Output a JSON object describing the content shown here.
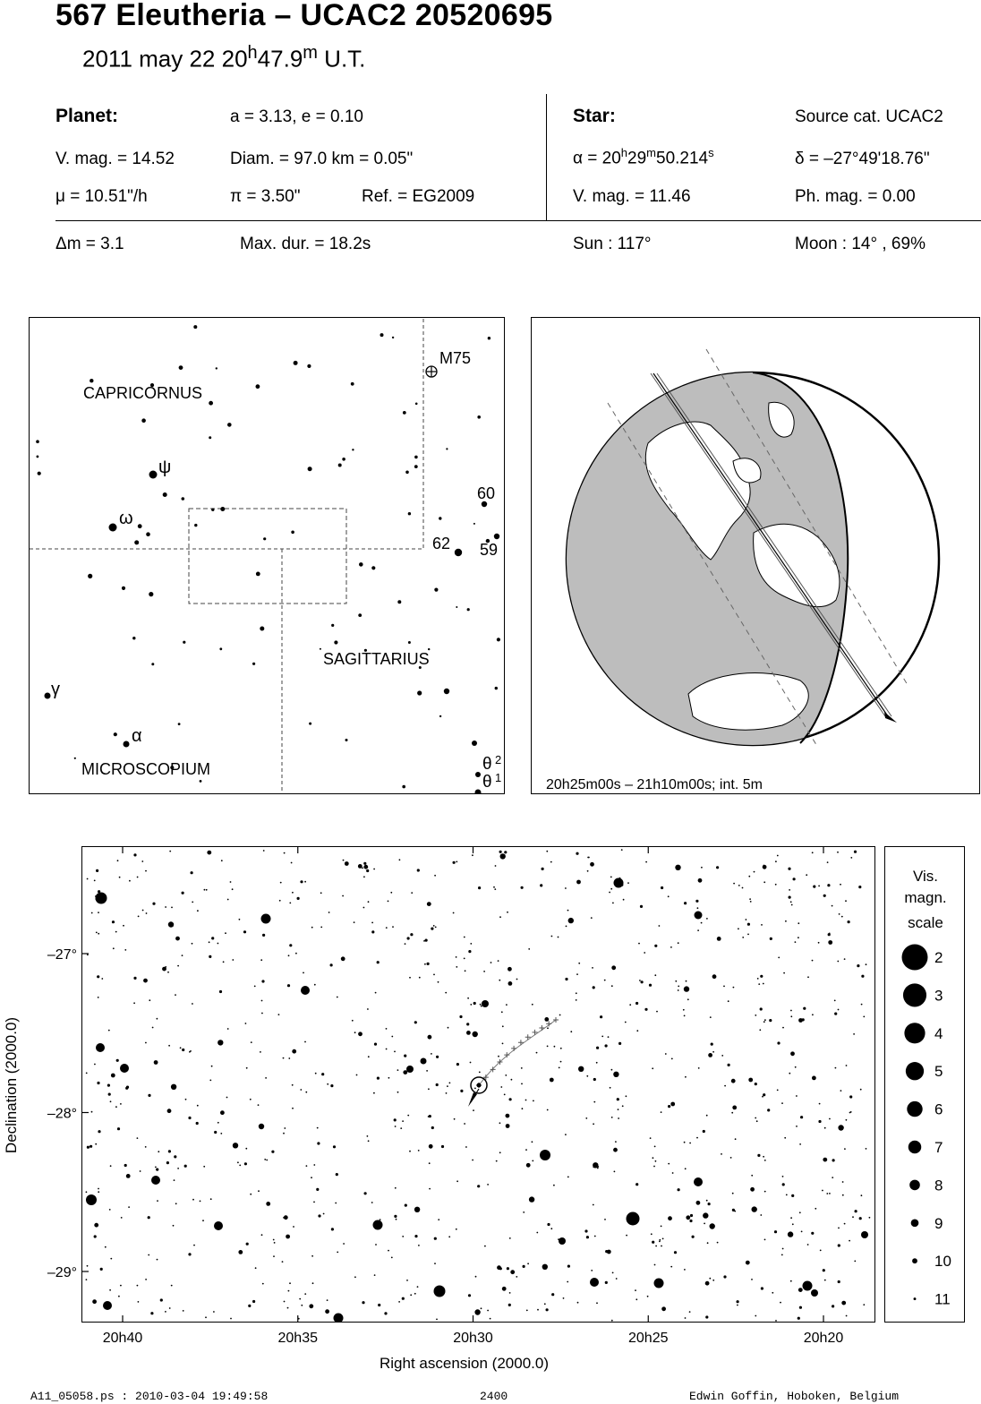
{
  "header": {
    "title": "567 Eleutheria  –  UCAC2 20520695",
    "date_prefix": "2011 may 22  20",
    "date_h": "h",
    "date_mid": "47.9",
    "date_m": "m",
    "date_suffix": " U.T."
  },
  "planet": {
    "heading": "Planet:",
    "orbit": "a = 3.13, e = 0.10",
    "vmag": "V. mag. = 14.52",
    "diam": "Diam. = 97.0 km = 0.05\"",
    "mu": "μ =  10.51\"/h",
    "pi": "π =  3.50\"",
    "ref": "Ref. = EG2009"
  },
  "star": {
    "heading": "Star:",
    "source": "Source cat.  UCAC2",
    "ra_prefix": "α = 20",
    "ra_h": "h",
    "ra_mid1": "29",
    "ra_m": "m",
    "ra_mid2": "50.214",
    "ra_s": "s",
    "dec": "δ = –27°49'18.76\"",
    "vmag": "V. mag. = 11.46",
    "phmag": "Ph. mag. =  0.00"
  },
  "event": {
    "dm": "Δm = 3.1",
    "maxdur": "Max. dur. = 18.2s",
    "sun": "Sun : 117°",
    "moon": "Moon :  14° , 69%"
  },
  "finder": {
    "labels": {
      "capricornus": "CAPRICORNUS",
      "sagittarius": "SAGITTARIUS",
      "microscopium": "MICROSCOPIUM",
      "m75": "M75",
      "psi": "ψ",
      "omega": "ω",
      "gamma": "γ",
      "alpha": "α",
      "n60": "60",
      "n62": "62",
      "n59": "59",
      "theta": "θ",
      "sup2": "2",
      "sup1": "1"
    }
  },
  "globe": {
    "caption": "20h25m00s – 21h10m00s; int.  5m"
  },
  "chart": {
    "ylabel": "Declination (2000.0)",
    "xlabel": "Right ascension (2000.0)",
    "yticks": [
      {
        "label": "–27°",
        "dec": -27
      },
      {
        "label": "–28°",
        "dec": -28
      },
      {
        "label": "–29°",
        "dec": -29
      }
    ],
    "xticks": [
      {
        "label": "20h40",
        "ra": 40
      },
      {
        "label": "20h35",
        "ra": 35
      },
      {
        "label": "20h30",
        "ra": 30
      },
      {
        "label": "20h25",
        "ra": 25
      },
      {
        "label": "20h20",
        "ra": 20
      }
    ],
    "legend_title": [
      "Vis.",
      "magn.",
      "scale"
    ],
    "legend": [
      "2",
      "3",
      "4",
      "5",
      "6",
      "7",
      "8",
      "9",
      "10",
      "11"
    ]
  },
  "footer": {
    "file": "A11_05058.ps : 2010-03-04 19:49:58",
    "number": "2400",
    "author": "Edwin Goffin, Hoboken, Belgium"
  }
}
